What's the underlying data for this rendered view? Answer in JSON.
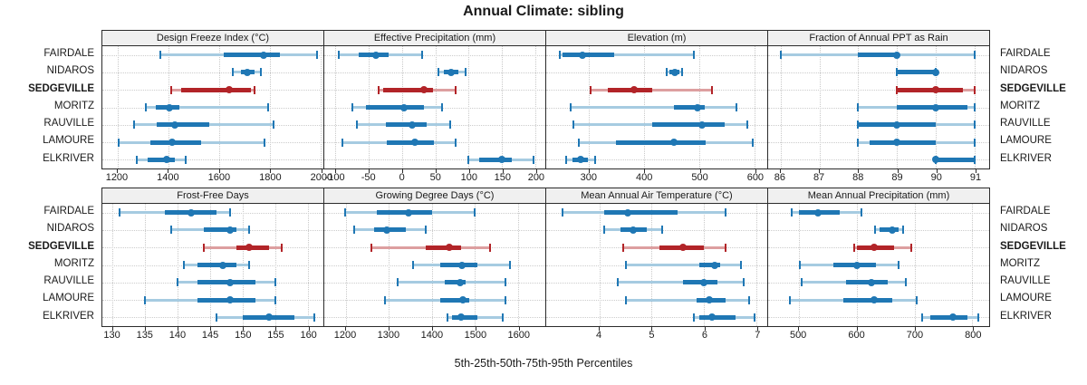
{
  "title": "Annual Climate: sibling",
  "caption": "5th-25th-50th-75th-95th Percentiles",
  "stations": [
    "FAIRDALE",
    "NIDAROS",
    "SEDGEVILLE",
    "MORITZ",
    "RAUVILLE",
    "LAMOURE",
    "ELKRIVER"
  ],
  "highlighted_station": "SEDGEVILLE",
  "percentile_labels": [
    "5th",
    "25th",
    "50th",
    "75th",
    "95th"
  ],
  "colors": {
    "blue": "#1f77b4",
    "blue_light": "#a6cbe1",
    "red": "#b22428",
    "red_light": "#dd9fa0",
    "header_bg": "#f0f0f0",
    "grid": "#c9c9c9",
    "border": "#2b2b2b"
  },
  "chart_data": {
    "type": "scatter",
    "subtype": "percentile-interval-trellis",
    "legend_position": "none",
    "grid": "dotted",
    "categories": [
      "FAIRDALE",
      "NIDAROS",
      "SEDGEVILLE",
      "MORITZ",
      "RAUVILLE",
      "LAMOURE",
      "ELKRIVER"
    ],
    "percentiles": [
      5,
      25,
      50,
      75,
      95
    ],
    "panels": [
      {
        "label": "Design Freeze Index (°C)",
        "slug": "design-freeze-index",
        "row": 0,
        "ticks": [
          1200,
          1400,
          1600,
          1800,
          2000
        ],
        "xmin": 1140,
        "xmax": 2011,
        "values": [
          [
            1370,
            1620,
            1775,
            1840,
            1985
          ],
          [
            1655,
            1685,
            1710,
            1740,
            1765
          ],
          [
            1410,
            1450,
            1640,
            1725,
            1740
          ],
          [
            1310,
            1350,
            1405,
            1445,
            1795
          ],
          [
            1265,
            1355,
            1425,
            1560,
            1815
          ],
          [
            1205,
            1330,
            1415,
            1530,
            1780
          ],
          [
            1275,
            1320,
            1395,
            1425,
            1470
          ]
        ]
      },
      {
        "label": "Effective Precipitation (mm)",
        "slug": "effective-precipitation",
        "row": 0,
        "ticks": [
          -100,
          -50,
          0,
          50,
          100,
          150,
          200
        ],
        "xmin": -117,
        "xmax": 215,
        "values": [
          [
            -95,
            -65,
            -40,
            -20,
            30
          ],
          [
            55,
            62,
            73,
            85,
            95
          ],
          [
            -35,
            -28,
            32,
            46,
            80
          ],
          [
            -75,
            -55,
            3,
            33,
            60
          ],
          [
            -68,
            -25,
            15,
            37,
            72
          ],
          [
            -90,
            -23,
            19,
            48,
            80
          ],
          [
            100,
            115,
            150,
            165,
            197
          ]
        ]
      },
      {
        "label": "Elevation (m)",
        "slug": "elevation",
        "row": 0,
        "ticks": [
          300,
          400,
          500,
          600
        ],
        "xmin": 222,
        "xmax": 623,
        "values": [
          [
            246,
            252,
            288,
            345,
            490
          ],
          [
            440,
            446,
            456,
            463,
            468
          ],
          [
            303,
            333,
            382,
            415,
            523
          ],
          [
            266,
            453,
            496,
            509,
            567
          ],
          [
            272,
            414,
            504,
            546,
            587
          ],
          [
            281,
            349,
            453,
            511,
            596
          ],
          [
            258,
            270,
            285,
            297,
            310
          ]
        ]
      },
      {
        "label": "Fraction of Annual PPT as Rain",
        "slug": "fraction-ppt-rain",
        "row": 0,
        "ticks": [
          86,
          87,
          88,
          89,
          90,
          91
        ],
        "xmin": 85.68,
        "xmax": 91.37,
        "values": [
          [
            86,
            88,
            89,
            89,
            91
          ],
          [
            89,
            89,
            90,
            90,
            90
          ],
          [
            89,
            89,
            90,
            90.7,
            91
          ],
          [
            88,
            89,
            90,
            90.8,
            91
          ],
          [
            88,
            88,
            89,
            90,
            91
          ],
          [
            88,
            88.3,
            89,
            90,
            91
          ],
          [
            90,
            90,
            90,
            91,
            91
          ]
        ]
      },
      {
        "label": "Frost-Free Days",
        "slug": "frost-free-days",
        "row": 1,
        "ticks": [
          130,
          135,
          140,
          145,
          150,
          155,
          160
        ],
        "xmin": 128.4,
        "xmax": 162.4,
        "values": [
          [
            131,
            138,
            142,
            146,
            148
          ],
          [
            139,
            144,
            148,
            149,
            151
          ],
          [
            144,
            149,
            151,
            154,
            156
          ],
          [
            141,
            143,
            147,
            149,
            151
          ],
          [
            140,
            143,
            148,
            152,
            155
          ],
          [
            135,
            143,
            148,
            152,
            155
          ],
          [
            146,
            150,
            154,
            158,
            161
          ]
        ]
      },
      {
        "label": "Growing Degree Days (°C)",
        "slug": "growing-degree-days",
        "row": 1,
        "ticks": [
          1200,
          1300,
          1400,
          1500,
          1600
        ],
        "xmin": 1150,
        "xmax": 1663,
        "values": [
          [
            1198,
            1272,
            1345,
            1400,
            1500
          ],
          [
            1220,
            1265,
            1295,
            1340,
            1385
          ],
          [
            1260,
            1385,
            1440,
            1467,
            1535
          ],
          [
            1355,
            1420,
            1470,
            1505,
            1580
          ],
          [
            1320,
            1430,
            1465,
            1478,
            1570
          ],
          [
            1290,
            1420,
            1472,
            1487,
            1570
          ],
          [
            1435,
            1446,
            1467,
            1505,
            1565
          ]
        ]
      },
      {
        "label": "Mean Annual Air Temperature (°C)",
        "slug": "mean-annual-air-temperature",
        "row": 1,
        "ticks": [
          4,
          5,
          6,
          7
        ],
        "xmin": 2.99,
        "xmax": 7.2,
        "values": [
          [
            3.3,
            4.1,
            4.55,
            5.5,
            6.4
          ],
          [
            4.1,
            4.4,
            4.65,
            4.9,
            5.2
          ],
          [
            4.45,
            5.15,
            5.6,
            6.0,
            6.4
          ],
          [
            4.5,
            5.9,
            6.2,
            6.3,
            6.7
          ],
          [
            4.35,
            5.6,
            6.0,
            6.25,
            6.75
          ],
          [
            4.5,
            5.85,
            6.1,
            6.4,
            6.85
          ],
          [
            5.8,
            5.9,
            6.15,
            6.6,
            6.95
          ]
        ]
      },
      {
        "label": "Mean Annual Precipitation (mm)",
        "slug": "mean-annual-precipitation",
        "row": 1,
        "ticks": [
          500,
          600,
          700,
          800
        ],
        "xmin": 447,
        "xmax": 829,
        "values": [
          [
            487,
            500,
            533,
            570,
            609
          ],
          [
            632,
            640,
            661,
            672,
            681
          ],
          [
            595,
            600,
            630,
            664,
            694
          ],
          [
            502,
            559,
            600,
            633,
            672
          ],
          [
            505,
            582,
            625,
            654,
            685
          ],
          [
            485,
            577,
            630,
            662,
            704
          ],
          [
            713,
            728,
            767,
            792,
            810
          ]
        ]
      }
    ]
  }
}
